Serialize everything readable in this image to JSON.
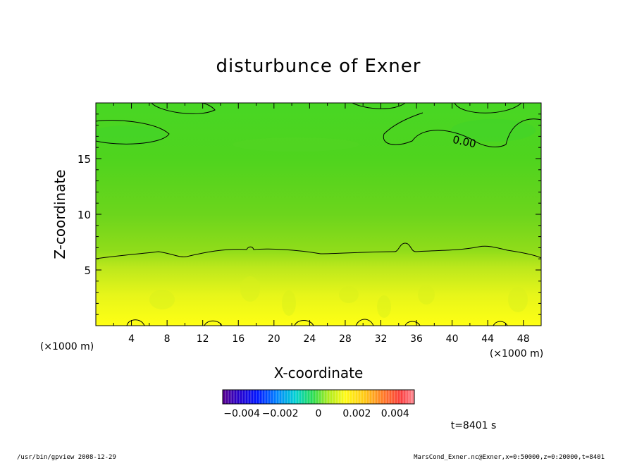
{
  "chart_data": {
    "type": "heatmap",
    "title": "disturbunce of Exner",
    "xlabel": "X-coordinate",
    "ylabel": "Z-coordinate",
    "x_unit": "(×1000 m)",
    "z_unit": "(×1000 m)",
    "xlim": [
      0,
      50
    ],
    "zlim": [
      0,
      20
    ],
    "x_ticks": [
      4,
      8,
      12,
      16,
      20,
      24,
      28,
      32,
      36,
      40,
      44,
      48
    ],
    "z_ticks": [
      5,
      10,
      15
    ],
    "contour_label": "0.00",
    "colorbar": {
      "vmin": -0.005,
      "vmax": 0.005,
      "tick_values": [
        -0.004,
        -0.002,
        0,
        0.002,
        0.004
      ],
      "tick_labels": [
        "−0.004",
        "−0.002",
        "0",
        "0.002",
        "0.004"
      ]
    },
    "field_samples": {
      "z": [
        0,
        2,
        4,
        6,
        8,
        10,
        12,
        14,
        16,
        18,
        20
      ],
      "value": [
        0.0017,
        0.0016,
        0.0012,
        0.0004,
        -0.0003,
        -0.0006,
        -0.0008,
        -0.0009,
        -0.0011,
        -0.0012,
        -0.0011
      ]
    },
    "time_label": "t=8401 s"
  },
  "footer": {
    "left": "/usr/bin/gpview   2008-12-29",
    "right": "MarsCond_Exner.nc@Exner,x=0:50000,z=0:20000,t=8401"
  }
}
